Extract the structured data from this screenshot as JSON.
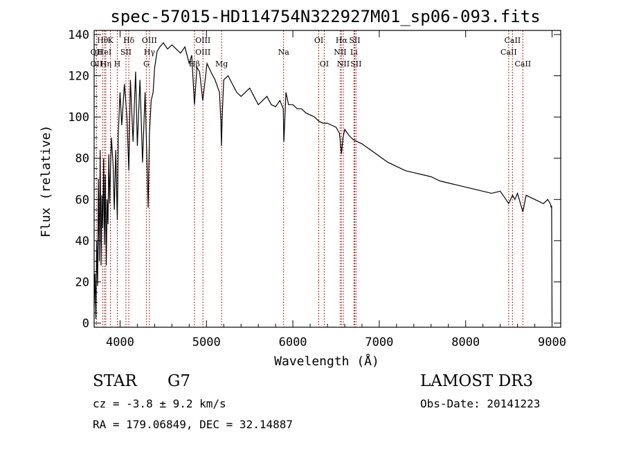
{
  "chart_data": {
    "type": "line",
    "title": "spec-57015-HD114754N322927M01_sp06-093.fits",
    "xlabel": "Wavelength (Å)",
    "ylabel": "Flux (relative)",
    "xlim": [
      3700,
      9100
    ],
    "ylim": [
      -2,
      142
    ],
    "x_ticks": [
      4000,
      5000,
      6000,
      7000,
      8000,
      9000
    ],
    "y_ticks": [
      0,
      20,
      40,
      60,
      80,
      100,
      120,
      140
    ],
    "grid": false,
    "series": [
      {
        "name": "flux",
        "x": [
          3700,
          3710,
          3720,
          3730,
          3740,
          3750,
          3760,
          3770,
          3780,
          3790,
          3800,
          3810,
          3820,
          3830,
          3840,
          3850,
          3860,
          3870,
          3880,
          3890,
          3900,
          3920,
          3933,
          3950,
          3968,
          3980,
          4000,
          4020,
          4050,
          4080,
          4101,
          4120,
          4150,
          4180,
          4200,
          4230,
          4260,
          4290,
          4310,
          4325,
          4340,
          4360,
          4383,
          4400,
          4430,
          4460,
          4500,
          4550,
          4600,
          4650,
          4700,
          4750,
          4800,
          4830,
          4861,
          4890,
          4920,
          4957,
          5007,
          5050,
          5100,
          5150,
          5167,
          5173,
          5184,
          5200,
          5250,
          5300,
          5350,
          5400,
          5450,
          5500,
          5550,
          5600,
          5650,
          5700,
          5750,
          5800,
          5850,
          5889,
          5896,
          5920,
          5950,
          6000,
          6050,
          6100,
          6150,
          6200,
          6250,
          6300,
          6350,
          6400,
          6450,
          6500,
          6540,
          6563,
          6580,
          6600,
          6650,
          6700,
          6750,
          6800,
          6900,
          7000,
          7100,
          7200,
          7300,
          7400,
          7500,
          7600,
          7700,
          7800,
          7900,
          8000,
          8100,
          8200,
          8300,
          8400,
          8450,
          8498,
          8520,
          8542,
          8570,
          8600,
          8662,
          8700,
          8750,
          8800,
          8850,
          8900,
          8950,
          8980,
          8990,
          8995,
          9000
        ],
        "values": [
          8,
          24,
          2,
          40,
          18,
          70,
          30,
          84,
          28,
          62,
          46,
          80,
          38,
          72,
          28,
          60,
          48,
          82,
          58,
          76,
          90,
          76,
          55,
          84,
          50,
          92,
          112,
          96,
          116,
          100,
          74,
          118,
          88,
          122,
          86,
          118,
          78,
          112,
          82,
          56,
          92,
          108,
          112,
          124,
          132,
          134,
          136,
          133,
          135,
          133,
          131,
          134,
          126,
          130,
          106,
          124,
          122,
          108,
          126,
          122,
          118,
          112,
          98,
          86,
          102,
          118,
          120,
          116,
          112,
          110,
          112,
          114,
          110,
          106,
          108,
          110,
          106,
          105,
          108,
          104,
          88,
          112,
          106,
          106,
          104,
          104,
          102,
          101,
          100,
          98,
          97,
          97,
          96,
          95,
          92,
          82,
          90,
          94,
          91,
          89,
          88,
          87,
          84,
          81,
          78,
          76,
          74,
          73,
          72,
          71,
          69,
          68,
          67,
          66,
          65,
          64,
          63,
          64,
          61,
          58,
          60,
          62,
          60,
          63,
          54,
          62,
          61,
          60,
          59,
          58,
          60,
          58,
          56,
          57,
          0
        ]
      }
    ],
    "line_markers": [
      {
        "wl": 3798,
        "label": "Hθ",
        "row": 1
      },
      {
        "wl": 3727,
        "label": "OII",
        "row": 2
      },
      {
        "wl": 3820,
        "label": "HeI",
        "row": 2
      },
      {
        "wl": 3727,
        "label": "OII",
        "row": 3
      },
      {
        "wl": 3835,
        "label": "Hη",
        "row": 3
      },
      {
        "wl": 3889,
        "label": "K",
        "row": 1
      },
      {
        "wl": 3968,
        "label": "H",
        "row": 3
      },
      {
        "wl": 4068,
        "label": "SII",
        "row": 2
      },
      {
        "wl": 4101,
        "label": "Hδ",
        "row": 1
      },
      {
        "wl": 4340,
        "label": "OIII",
        "row": 1
      },
      {
        "wl": 4340,
        "label": "Hγ",
        "row": 2
      },
      {
        "wl": 4304,
        "label": "G",
        "row": 3
      },
      {
        "wl": 4959,
        "label": "OIII",
        "row": 1
      },
      {
        "wl": 4959,
        "label": "OIII",
        "row": 2
      },
      {
        "wl": 4861,
        "label": "Hβ",
        "row": 3
      },
      {
        "wl": 5175,
        "label": "Mg",
        "row": 3
      },
      {
        "wl": 5893,
        "label": "Na",
        "row": 2
      },
      {
        "wl": 6300,
        "label": "OI",
        "row": 1
      },
      {
        "wl": 6363,
        "label": "OI",
        "row": 3
      },
      {
        "wl": 6563,
        "label": "Hα",
        "row": 1
      },
      {
        "wl": 6716,
        "label": "SII",
        "row": 1
      },
      {
        "wl": 6548,
        "label": "NII",
        "row": 2
      },
      {
        "wl": 6707,
        "label": "Li",
        "row": 2
      },
      {
        "wl": 6584,
        "label": "NII",
        "row": 3
      },
      {
        "wl": 6731,
        "label": "SII",
        "row": 3
      },
      {
        "wl": 8542,
        "label": "CaII",
        "row": 1
      },
      {
        "wl": 8498,
        "label": "CaII",
        "row": 2
      },
      {
        "wl": 8662,
        "label": "CaII",
        "row": 3
      }
    ]
  },
  "info": {
    "object_class": "STAR",
    "subclass": "G7",
    "cz": "cz = -3.8 ± 9.2 km/s",
    "coords": "RA = 179.06849, DEC =  32.14887",
    "survey": "LAMOST DR3",
    "obs_date": "Obs-Date: 20141223"
  },
  "colors": {
    "marker": "#b22222",
    "line": "#000000",
    "background": "#ffffff"
  }
}
